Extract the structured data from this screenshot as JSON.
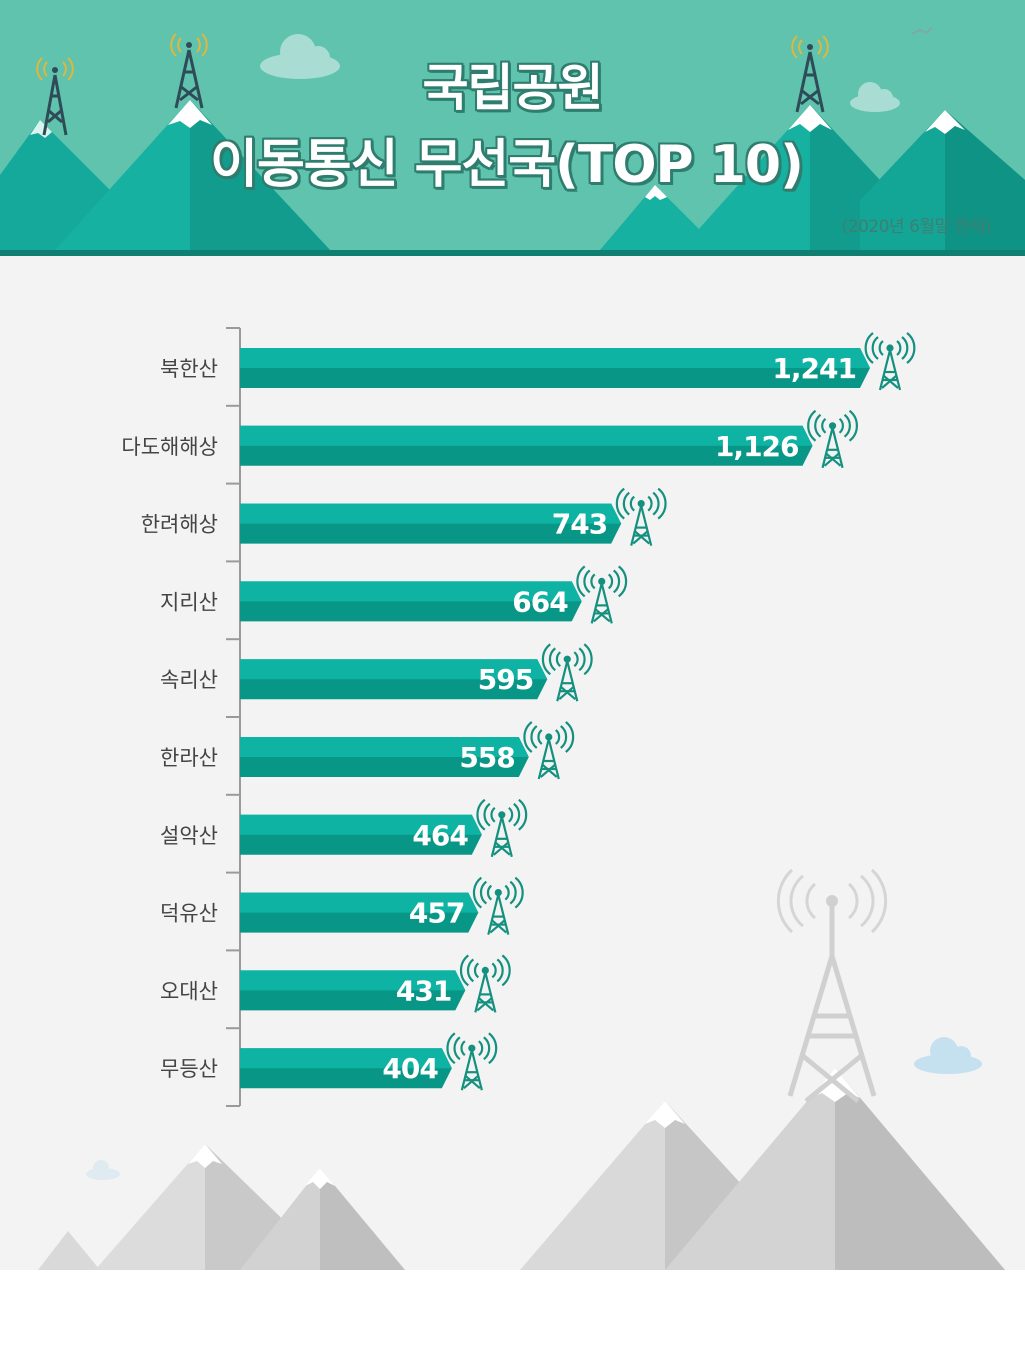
{
  "header": {
    "title_line1": "국립공원",
    "title_line2": "이동통신 무선국(TOP 10)",
    "subtitle": "(2020년 6월말 현재)"
  },
  "colors": {
    "header_bg": "#5fc3ad",
    "bar_top": "#0fb3a3",
    "bar_bottom": "#089686",
    "tower": "#14907f",
    "panel_bg": "#f3f3f3"
  },
  "icons": [
    "antenna-tower-icon",
    "cloud-icon",
    "mountain-icon"
  ],
  "chart_data": {
    "type": "bar",
    "orientation": "horizontal",
    "title": "국립공원 이동통신 무선국(TOP 10)",
    "subtitle": "(2020년 6월말 현재)",
    "categories": [
      "북한산",
      "다도해해상",
      "한려해상",
      "지리산",
      "속리산",
      "한라산",
      "설악산",
      "덕유산",
      "오대산",
      "무등산"
    ],
    "values": [
      1241,
      1126,
      743,
      664,
      595,
      558,
      464,
      457,
      431,
      404
    ],
    "value_labels": [
      "1,241",
      "1,126",
      "743",
      "664",
      "595",
      "558",
      "464",
      "457",
      "431",
      "404"
    ],
    "xlabel": "",
    "ylabel": "",
    "grid": false,
    "legend": "none"
  }
}
